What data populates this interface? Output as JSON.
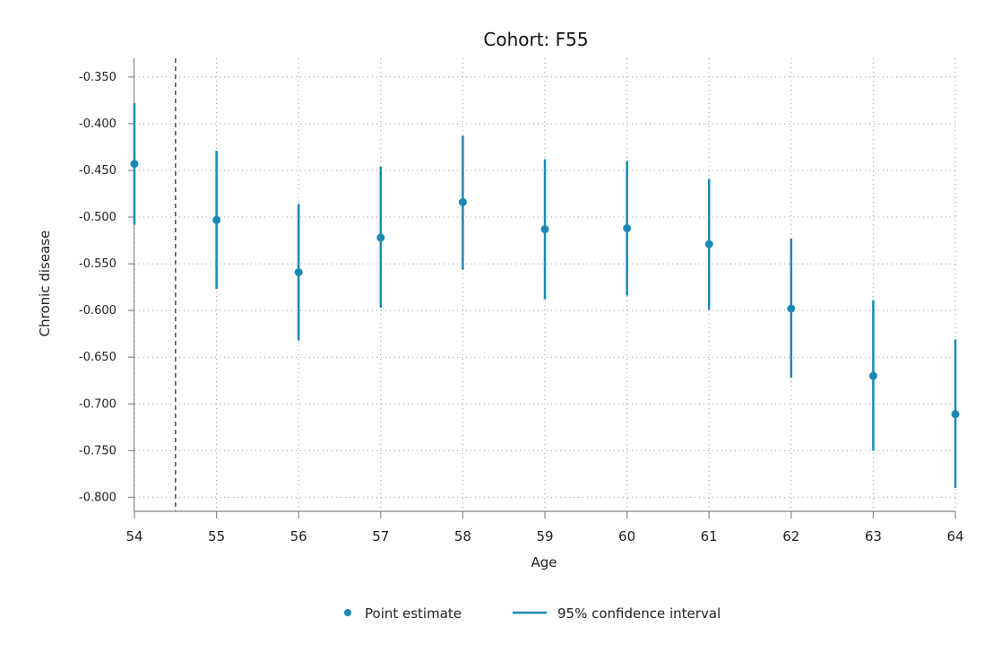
{
  "chart_data": {
    "type": "scatter",
    "title": "Cohort: F55",
    "xlabel": "Age",
    "ylabel": "Chronic disease",
    "x": [
      54,
      55,
      56,
      57,
      58,
      59,
      60,
      61,
      62,
      63,
      64
    ],
    "xticks": [
      "54",
      "55",
      "56",
      "57",
      "58",
      "59",
      "60",
      "61",
      "62",
      "63",
      "64"
    ],
    "yticks": [
      "-0.350",
      "-0.400",
      "-0.450",
      "-0.500",
      "-0.550",
      "-0.600",
      "-0.650",
      "-0.700",
      "-0.750",
      "-0.800"
    ],
    "ytick_values": [
      -0.35,
      -0.4,
      -0.45,
      -0.5,
      -0.55,
      -0.6,
      -0.65,
      -0.7,
      -0.75,
      -0.8
    ],
    "ylim": [
      -0.815,
      -0.33
    ],
    "xlim": [
      54,
      64
    ],
    "reference_line_x": 54.5,
    "grid": true,
    "legend_position": "bottom",
    "color": "#1a8ab5",
    "series": [
      {
        "name": "Point estimate",
        "values": [
          -0.443,
          -0.503,
          -0.559,
          -0.522,
          -0.484,
          -0.513,
          -0.512,
          -0.529,
          -0.598,
          -0.67,
          -0.711
        ]
      },
      {
        "name": "95% confidence interval",
        "lower": [
          -0.508,
          -0.577,
          -0.632,
          -0.597,
          -0.556,
          -0.588,
          -0.584,
          -0.599,
          -0.672,
          -0.75,
          -0.79
        ],
        "upper": [
          -0.378,
          -0.429,
          -0.486,
          -0.446,
          -0.413,
          -0.438,
          -0.44,
          -0.459,
          -0.523,
          -0.589,
          -0.631
        ]
      }
    ]
  },
  "legend": {
    "point_label": "Point estimate",
    "ci_label": "95% confidence interval"
  }
}
